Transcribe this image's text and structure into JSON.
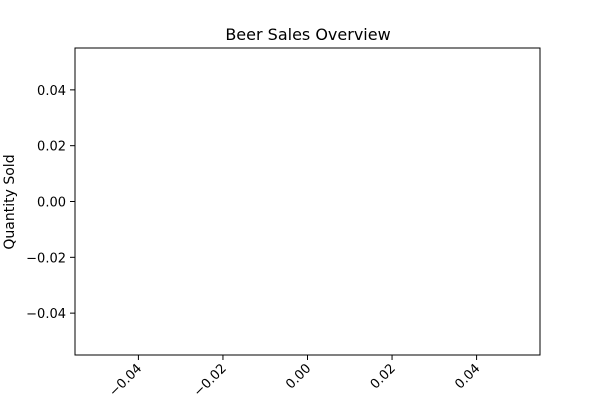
{
  "chart_data": {
    "type": "bar",
    "title": "Beer Sales Overview",
    "xlabel": "",
    "ylabel": "Quantity Sold",
    "categories": [],
    "values": [],
    "xlim": [
      -0.055,
      0.055
    ],
    "ylim": [
      -0.055,
      0.055
    ],
    "x_ticks": [
      -0.04,
      -0.02,
      0.0,
      0.02,
      0.04
    ],
    "x_tick_labels": [
      "−0.04",
      "−0.02",
      "0.00",
      "0.02",
      "0.04"
    ],
    "y_ticks": [
      -0.04,
      -0.02,
      0.0,
      0.02,
      0.04
    ],
    "y_tick_labels": [
      "−0.04",
      "−0.02",
      "0.00",
      "0.02",
      "0.04"
    ],
    "x_tick_rotation": "45 degrees",
    "grid": false,
    "legend": "none",
    "colors": {
      "axis": "#000000",
      "background": "#ffffff"
    }
  }
}
